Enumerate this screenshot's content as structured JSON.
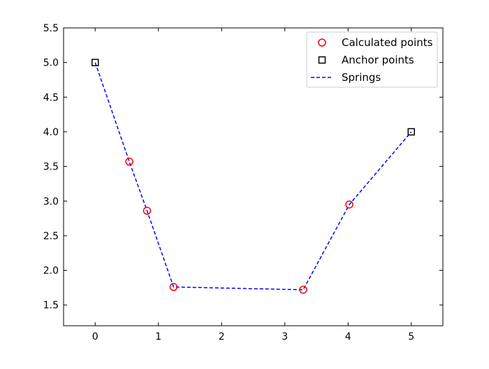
{
  "chart_data": {
    "type": "line",
    "title": "",
    "xlabel": "",
    "ylabel": "",
    "xlim": [
      -0.5,
      5.5
    ],
    "ylim": [
      1.2,
      5.5
    ],
    "xticks": [
      0,
      1,
      2,
      3,
      4,
      5
    ],
    "xtick_labels": [
      "0",
      "1",
      "2",
      "3",
      "4",
      "5"
    ],
    "yticks": [
      1.5,
      2.0,
      2.5,
      3.0,
      3.5,
      4.0,
      4.5,
      5.0,
      5.5
    ],
    "ytick_labels": [
      "1.5",
      "2.0",
      "2.5",
      "3.0",
      "3.5",
      "4.0",
      "4.5",
      "5.0",
      "5.5"
    ],
    "grid": false,
    "legend_position": "top-right",
    "series": [
      {
        "name": "Calculated points",
        "kind": "scatter",
        "marker": "circle-open",
        "color": "#ff0000",
        "x": [
          0.54,
          0.82,
          1.24,
          3.29,
          4.02
        ],
        "y": [
          3.57,
          2.86,
          1.76,
          1.72,
          2.95
        ]
      },
      {
        "name": "Anchor points",
        "kind": "scatter",
        "marker": "square-open",
        "color": "#000000",
        "x": [
          0,
          5
        ],
        "y": [
          5.0,
          4.0
        ]
      },
      {
        "name": "Springs",
        "kind": "line",
        "style": "dashed",
        "color": "#0000ff",
        "x": [
          0,
          0.54,
          0.82,
          1.24,
          3.29,
          4.02,
          5
        ],
        "y": [
          5.0,
          3.57,
          2.86,
          1.76,
          1.72,
          2.95,
          4.0
        ]
      }
    ]
  }
}
